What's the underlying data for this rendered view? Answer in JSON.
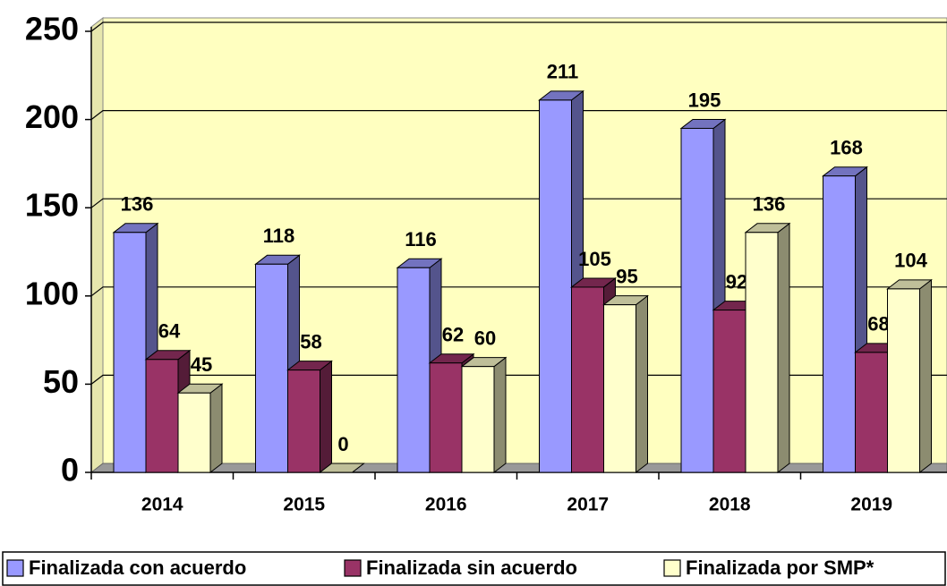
{
  "chart_data": {
    "type": "bar3d",
    "categories": [
      "2014",
      "2015",
      "2016",
      "2017",
      "2018",
      "2019"
    ],
    "series": [
      {
        "name": "Finalizada con acuerdo",
        "color": "#9999ff",
        "values": [
          136,
          118,
          116,
          211,
          195,
          168
        ]
      },
      {
        "name": "Finalizada sin acuerdo",
        "color": "#993366",
        "values": [
          64,
          58,
          62,
          105,
          92,
          68
        ]
      },
      {
        "name": "Finalizada por SMP*",
        "color": "#ffffcc",
        "values": [
          45,
          0,
          60,
          95,
          136,
          104
        ]
      }
    ],
    "ylim": [
      0,
      250
    ],
    "yticks": [
      0,
      50,
      100,
      150,
      200,
      250
    ],
    "grid": true,
    "wall_color": "#ffffc0",
    "legend_position": "bottom"
  }
}
